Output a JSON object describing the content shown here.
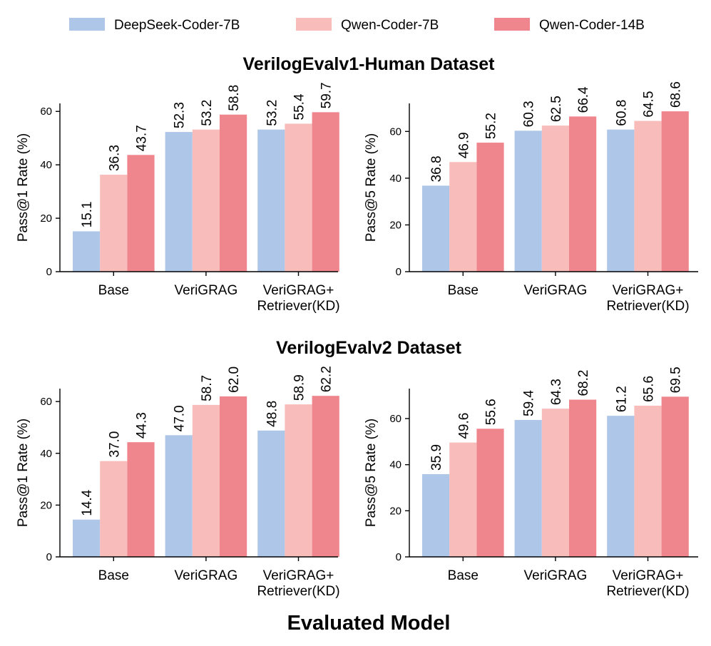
{
  "chart_data": {
    "type": "bar",
    "legend": {
      "placement": "top",
      "entries": [
        {
          "name": "DeepSeek-Coder-7B",
          "color": "#aec7e8"
        },
        {
          "name": "Qwen-Coder-7B",
          "color": "#f8bcba"
        },
        {
          "name": "Qwen-Coder-14B",
          "color": "#f0868d"
        }
      ]
    },
    "xlabel": "Evaluated Model",
    "sections": [
      {
        "title": "VerilogEvalv1-Human Dataset",
        "panels": [
          {
            "ylabel": "Pass@1 Rate (%)",
            "ylim": [
              0,
              63
            ],
            "yticks": [
              0,
              20,
              40,
              60
            ],
            "categories": [
              [
                "Base"
              ],
              [
                "VeriGRAG"
              ],
              [
                "VeriGRAG+",
                "Retriever(KD)"
              ]
            ],
            "series": [
              {
                "name": "DeepSeek-Coder-7B",
                "values": [
                  15.1,
                  52.3,
                  53.2
                ],
                "labels": [
                  "15.1",
                  "52.3",
                  "53.2"
                ]
              },
              {
                "name": "Qwen-Coder-7B",
                "values": [
                  36.3,
                  53.2,
                  55.4
                ],
                "labels": [
                  "36.3",
                  "53.2",
                  "55.4"
                ]
              },
              {
                "name": "Qwen-Coder-14B",
                "values": [
                  43.7,
                  58.8,
                  59.7
                ],
                "labels": [
                  "43.7",
                  "58.8",
                  "59.7"
                ]
              }
            ]
          },
          {
            "ylabel": "Pass@5 Rate (%)",
            "ylim": [
              0,
              72
            ],
            "yticks": [
              0,
              20,
              40,
              60
            ],
            "categories": [
              [
                "Base"
              ],
              [
                "VeriGRAG"
              ],
              [
                "VeriGRAG+",
                "Retriever(KD)"
              ]
            ],
            "series": [
              {
                "name": "DeepSeek-Coder-7B",
                "values": [
                  36.8,
                  60.3,
                  60.8
                ],
                "labels": [
                  "36.8",
                  "60.3",
                  "60.8"
                ]
              },
              {
                "name": "Qwen-Coder-7B",
                "values": [
                  46.9,
                  62.5,
                  64.5
                ],
                "labels": [
                  "46.9",
                  "62.5",
                  "64.5"
                ]
              },
              {
                "name": "Qwen-Coder-14B",
                "values": [
                  55.2,
                  66.4,
                  68.6
                ],
                "labels": [
                  "55.2",
                  "66.4",
                  "68.6"
                ]
              }
            ]
          }
        ]
      },
      {
        "title": "VerilogEvalv2 Dataset",
        "panels": [
          {
            "ylabel": "Pass@1 Rate (%)",
            "ylim": [
              0,
              65
            ],
            "yticks": [
              0,
              20,
              40,
              60
            ],
            "categories": [
              [
                "Base"
              ],
              [
                "VeriGRAG"
              ],
              [
                "VeriGRAG+",
                "Retriever(KD)"
              ]
            ],
            "series": [
              {
                "name": "DeepSeek-Coder-7B",
                "values": [
                  14.4,
                  47.0,
                  48.8
                ],
                "labels": [
                  "14.4",
                  "47.0",
                  "48.8"
                ]
              },
              {
                "name": "Qwen-Coder-7B",
                "values": [
                  37.0,
                  58.7,
                  58.9
                ],
                "labels": [
                  "37.0",
                  "58.7",
                  "58.9"
                ]
              },
              {
                "name": "Qwen-Coder-14B",
                "values": [
                  44.3,
                  62.0,
                  62.2
                ],
                "labels": [
                  "44.3",
                  "62.0",
                  "62.2"
                ]
              }
            ]
          },
          {
            "ylabel": "Pass@5 Rate (%)",
            "ylim": [
              0,
              73
            ],
            "yticks": [
              0,
              20,
              40,
              60
            ],
            "categories": [
              [
                "Base"
              ],
              [
                "VeriGRAG"
              ],
              [
                "VeriGRAG+",
                "Retriever(KD)"
              ]
            ],
            "series": [
              {
                "name": "DeepSeek-Coder-7B",
                "values": [
                  35.9,
                  59.4,
                  61.2
                ],
                "labels": [
                  "35.9",
                  "59.4",
                  "61.2"
                ]
              },
              {
                "name": "Qwen-Coder-7B",
                "values": [
                  49.6,
                  64.3,
                  65.6
                ],
                "labels": [
                  "49.6",
                  "64.3",
                  "65.6"
                ]
              },
              {
                "name": "Qwen-Coder-14B",
                "values": [
                  55.6,
                  68.2,
                  69.5
                ],
                "labels": [
                  "55.6",
                  "68.2",
                  "69.5"
                ]
              }
            ]
          }
        ]
      }
    ]
  }
}
